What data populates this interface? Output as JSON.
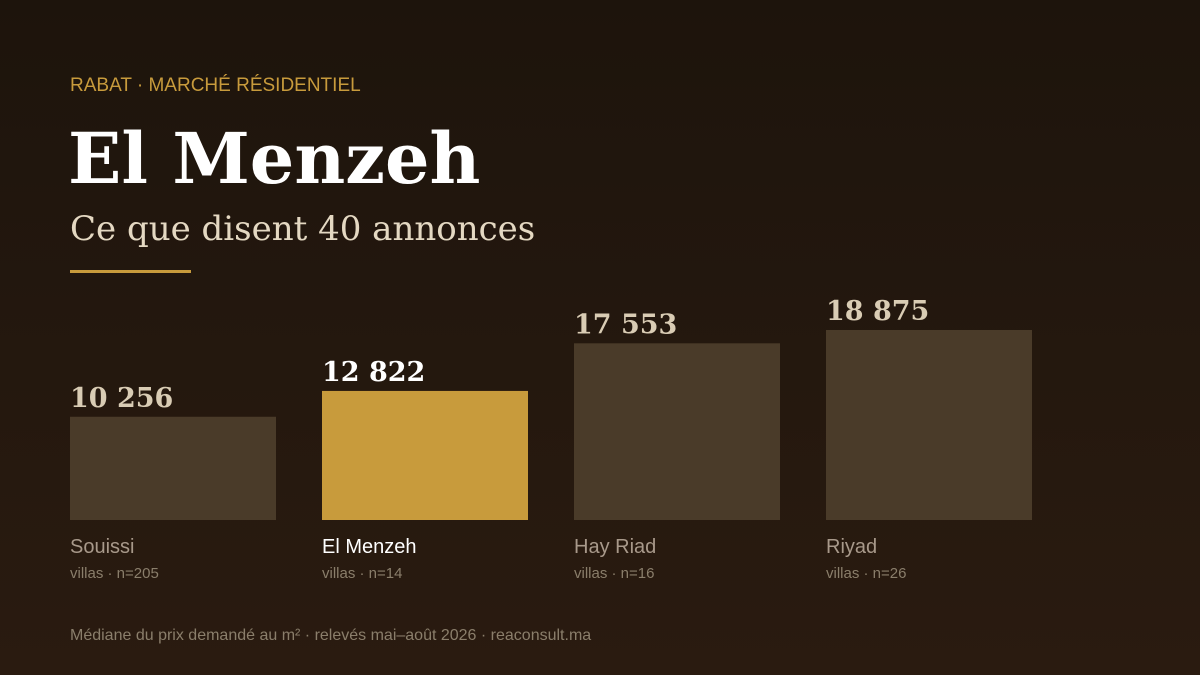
{
  "chart_data": {
    "type": "bar",
    "eyebrow": "RABAT · MARCHÉ RÉSIDENTIEL",
    "title": "El Menzeh",
    "subtitle": "Ce que disent 40 annonces",
    "categories": [
      "Souissi",
      "El Menzeh",
      "Hay Riad",
      "Riyad"
    ],
    "sublabels": [
      "villas · n=205",
      "villas · n=14",
      "villas · n=16",
      "villas · n=26"
    ],
    "values": [
      10256,
      12822,
      17553,
      18875
    ],
    "value_labels": [
      "10 256",
      "12 822",
      "17 553",
      "18 875"
    ],
    "colors": [
      "#4a3b29",
      "#c89b3c",
      "#4a3b29",
      "#4a3b29"
    ],
    "accent_color": "#c89b3c",
    "footnote": "Médiane du prix demandé au m² · relevés mai–août 2026 · reaconsult.ma"
  }
}
